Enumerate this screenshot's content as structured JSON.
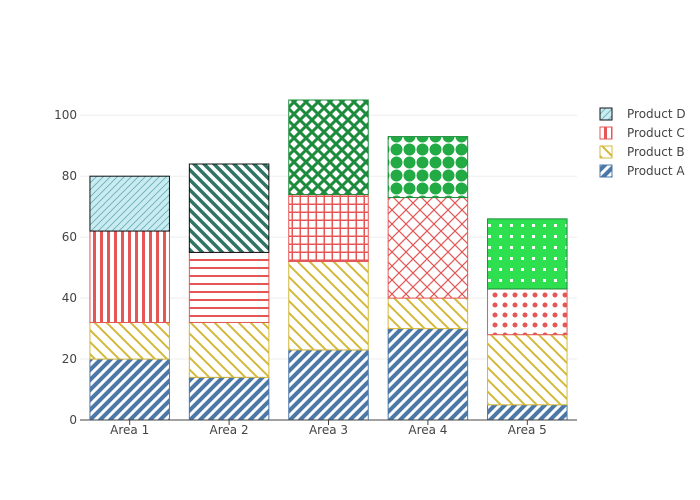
{
  "chart_data": {
    "type": "bar",
    "barmode": "stack",
    "categories": [
      "Area 1",
      "Area 2",
      "Area 3",
      "Area 4",
      "Area 5"
    ],
    "ylim": [
      0,
      105
    ],
    "yticks": [
      0,
      20,
      40,
      60,
      80,
      100
    ],
    "grid": true,
    "legend_position": "top-right",
    "series": [
      {
        "name": "Product A",
        "values": [
          20,
          14,
          23,
          30,
          5
        ],
        "color": "#4C78A8",
        "patterns": [
          "diag-fwd",
          "diag-fwd",
          "diag-fwd",
          "diag-fwd",
          "diag-fwd"
        ]
      },
      {
        "name": "Product B",
        "values": [
          12,
          18,
          29,
          10,
          23
        ],
        "color": "#D4B83A",
        "patterns": [
          "diag-back",
          "diag-back",
          "diag-back",
          "diag-back",
          "diag-back"
        ]
      },
      {
        "name": "Product C",
        "values": [
          30,
          23,
          22,
          33,
          15
        ],
        "color": "#E45756",
        "patterns": [
          "vlines",
          "hlines",
          "grid",
          "crosshatch",
          "dots"
        ]
      },
      {
        "name": "Product D",
        "values": [
          18,
          29,
          31,
          20,
          23
        ],
        "color": "#1C8C3C",
        "patterns": [
          "diag-fwd-light",
          "diag-back-dark",
          "crosshatch-dark",
          "bigdots",
          "squares"
        ]
      }
    ]
  }
}
